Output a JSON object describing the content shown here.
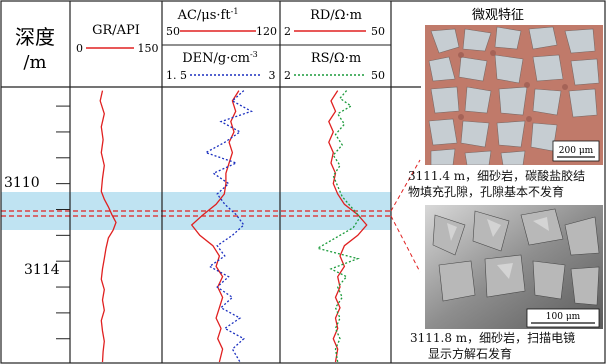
{
  "columns": {
    "depth": {
      "title": "深度",
      "unit": "/m"
    },
    "gr": {
      "label": "GR/API",
      "min": "0",
      "max": "150",
      "color": "#e02020"
    },
    "ac": {
      "label": "AC/μs·ft",
      "sup": "-1",
      "min": "50",
      "max": "120",
      "color": "#e02020"
    },
    "den": {
      "label": "DEN/g·cm",
      "sup": "-3",
      "min": "1. 5",
      "max": "3",
      "color": "#1a2fbf"
    },
    "rd": {
      "label": "RD/Ω·m",
      "min": "2",
      "max": "50",
      "color": "#e02020"
    },
    "rs": {
      "label": "RS/Ω·m",
      "min": "2",
      "max": "50",
      "color": "#1a9a3a"
    },
    "micro": {
      "title": "微观特征"
    }
  },
  "depth_ticks": [
    "3110",
    "3114"
  ],
  "highlight": {
    "color": "#bfe3f2",
    "line_color": "#e02020"
  },
  "photos": [
    {
      "name": "thin-section-photo",
      "scale_bar": "200 μm",
      "caption_line1": "3111.4 m，细砂岩，碳酸盐胶结",
      "caption_line2": "物填充孔隙，孔隙基本不发育"
    },
    {
      "name": "sem-photo",
      "scale_bar": "100 μm",
      "caption_line1": "3111.8 m，细砂岩，扫描电镜",
      "caption_line2": "显示方解石发育"
    }
  ],
  "chart_data": {
    "type": "line",
    "depth_range": [
      3106.3,
      3116.9
    ],
    "series": [
      {
        "name": "GR/API",
        "track": "gr",
        "scale": [
          0,
          150
        ],
        "color": "#e02020",
        "points": [
          [
            3106.4,
            52
          ],
          [
            3106.8,
            48
          ],
          [
            3107.3,
            55
          ],
          [
            3107.8,
            50
          ],
          [
            3108.3,
            53
          ],
          [
            3108.8,
            50
          ],
          [
            3109.3,
            55
          ],
          [
            3109.8,
            52
          ],
          [
            3110.3,
            50
          ],
          [
            3110.6,
            55
          ],
          [
            3110.9,
            62
          ],
          [
            3111.2,
            68
          ],
          [
            3111.5,
            75
          ],
          [
            3111.8,
            70
          ],
          [
            3112.1,
            62
          ],
          [
            3112.5,
            58
          ],
          [
            3112.9,
            55
          ],
          [
            3113.3,
            52
          ],
          [
            3113.7,
            50
          ],
          [
            3114.1,
            55
          ],
          [
            3114.5,
            52
          ],
          [
            3114.9,
            55
          ],
          [
            3115.3,
            50
          ],
          [
            3115.7,
            52
          ],
          [
            3116.1,
            55
          ],
          [
            3116.5,
            53
          ],
          [
            3116.9,
            52
          ]
        ]
      },
      {
        "name": "AC/μs·ft-1",
        "track": "acden",
        "scale": [
          50,
          120
        ],
        "color": "#e02020",
        "points": [
          [
            3106.4,
            96
          ],
          [
            3106.8,
            92
          ],
          [
            3107.2,
            94
          ],
          [
            3107.6,
            91
          ],
          [
            3108.0,
            93
          ],
          [
            3108.4,
            90
          ],
          [
            3108.8,
            92
          ],
          [
            3109.2,
            90
          ],
          [
            3109.6,
            88
          ],
          [
            3110.0,
            88
          ],
          [
            3110.4,
            87
          ],
          [
            3110.8,
            82
          ],
          [
            3111.2,
            74
          ],
          [
            3111.6,
            67
          ],
          [
            3112.0,
            72
          ],
          [
            3112.4,
            80
          ],
          [
            3112.8,
            84
          ],
          [
            3113.2,
            82
          ],
          [
            3113.6,
            86
          ],
          [
            3114.0,
            83
          ],
          [
            3114.4,
            86
          ],
          [
            3114.8,
            84
          ],
          [
            3115.2,
            82
          ],
          [
            3115.6,
            85
          ],
          [
            3116.0,
            83
          ],
          [
            3116.4,
            86
          ],
          [
            3116.9,
            84
          ]
        ]
      },
      {
        "name": "DEN/g·cm-3",
        "track": "acden",
        "scale": [
          1.5,
          3
        ],
        "color": "#1a2fbf",
        "dotted": true,
        "points": [
          [
            3106.4,
            2.55
          ],
          [
            3106.8,
            2.4
          ],
          [
            3107.2,
            2.65
          ],
          [
            3107.6,
            2.25
          ],
          [
            3108.0,
            2.5
          ],
          [
            3108.4,
            2.3
          ],
          [
            3108.8,
            2.05
          ],
          [
            3109.2,
            2.45
          ],
          [
            3109.6,
            2.15
          ],
          [
            3110.0,
            2.35
          ],
          [
            3110.4,
            2.2
          ],
          [
            3110.8,
            2.3
          ],
          [
            3111.2,
            2.45
          ],
          [
            3111.6,
            2.55
          ],
          [
            3112.0,
            2.4
          ],
          [
            3112.4,
            2.2
          ],
          [
            3112.8,
            2.3
          ],
          [
            3113.2,
            2.1
          ],
          [
            3113.6,
            2.35
          ],
          [
            3114.0,
            2.2
          ],
          [
            3114.4,
            2.4
          ],
          [
            3114.8,
            2.25
          ],
          [
            3115.2,
            2.5
          ],
          [
            3115.6,
            2.3
          ],
          [
            3116.0,
            2.55
          ],
          [
            3116.4,
            2.4
          ],
          [
            3116.9,
            2.5
          ]
        ]
      },
      {
        "name": "RD/Ω·m",
        "track": "res",
        "scale": [
          2,
          50
        ],
        "color": "#e02020",
        "points": [
          [
            3106.4,
            27
          ],
          [
            3106.8,
            24
          ],
          [
            3107.2,
            26
          ],
          [
            3107.6,
            23
          ],
          [
            3108.0,
            25
          ],
          [
            3108.4,
            23
          ],
          [
            3108.8,
            25
          ],
          [
            3109.2,
            24
          ],
          [
            3109.6,
            26
          ],
          [
            3110.0,
            25
          ],
          [
            3110.4,
            27
          ],
          [
            3110.8,
            30
          ],
          [
            3111.2,
            36
          ],
          [
            3111.6,
            40
          ],
          [
            3112.0,
            36
          ],
          [
            3112.4,
            30
          ],
          [
            3112.8,
            28
          ],
          [
            3113.2,
            30
          ],
          [
            3113.6,
            27
          ],
          [
            3114.0,
            28
          ],
          [
            3114.4,
            26
          ],
          [
            3114.8,
            28
          ],
          [
            3115.2,
            26
          ],
          [
            3115.6,
            27
          ],
          [
            3116.0,
            25
          ],
          [
            3116.4,
            27
          ],
          [
            3116.9,
            26
          ]
        ]
      },
      {
        "name": "RS/Ω·m",
        "track": "res",
        "scale": [
          2,
          50
        ],
        "color": "#1a9a3a",
        "dotted": true,
        "points": [
          [
            3106.4,
            31
          ],
          [
            3106.7,
            28
          ],
          [
            3107.0,
            33
          ],
          [
            3107.3,
            27
          ],
          [
            3107.7,
            30
          ],
          [
            3108.1,
            26
          ],
          [
            3108.5,
            29
          ],
          [
            3108.9,
            25
          ],
          [
            3109.3,
            28
          ],
          [
            3109.7,
            25
          ],
          [
            3110.1,
            27
          ],
          [
            3110.5,
            29
          ],
          [
            3110.9,
            33
          ],
          [
            3111.3,
            37
          ],
          [
            3111.7,
            34
          ],
          [
            3112.1,
            26
          ],
          [
            3112.5,
            18
          ],
          [
            3112.9,
            36
          ],
          [
            3113.3,
            24
          ],
          [
            3113.6,
            31
          ],
          [
            3114.0,
            27
          ],
          [
            3114.4,
            29
          ],
          [
            3114.8,
            26
          ],
          [
            3115.2,
            28
          ],
          [
            3115.6,
            26
          ],
          [
            3116.0,
            28
          ],
          [
            3116.4,
            26
          ],
          [
            3116.9,
            27
          ]
        ]
      }
    ]
  }
}
